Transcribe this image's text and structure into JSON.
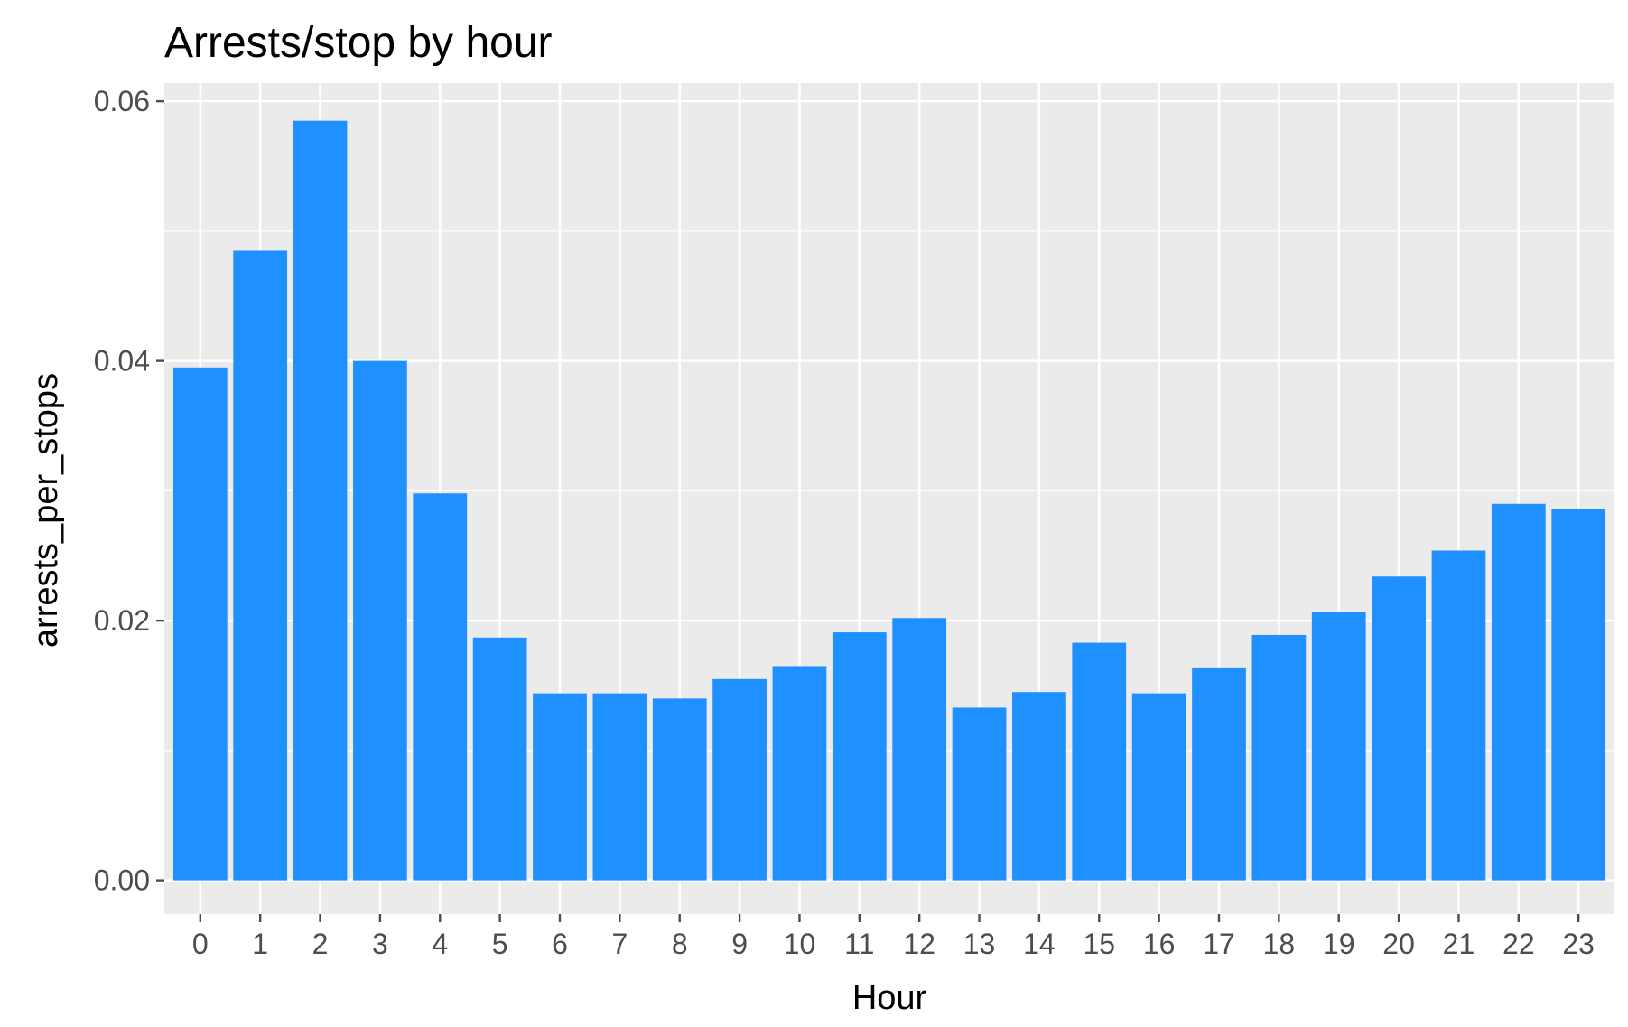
{
  "chart_data": {
    "type": "bar",
    "title": "Arrests/stop by hour",
    "xlabel": "Hour",
    "ylabel": "arrests_per_stops",
    "categories": [
      "0",
      "1",
      "2",
      "3",
      "4",
      "5",
      "6",
      "7",
      "8",
      "9",
      "10",
      "11",
      "12",
      "13",
      "14",
      "15",
      "16",
      "17",
      "18",
      "19",
      "20",
      "21",
      "22",
      "23"
    ],
    "values": [
      0.0395,
      0.0485,
      0.0585,
      0.04,
      0.0298,
      0.0187,
      0.0144,
      0.0144,
      0.014,
      0.0155,
      0.0165,
      0.0191,
      0.0202,
      0.0133,
      0.0145,
      0.0183,
      0.0144,
      0.0164,
      0.0189,
      0.0207,
      0.0234,
      0.0254,
      0.029,
      0.0286
    ],
    "yticks": [
      0.0,
      0.02,
      0.04,
      0.06
    ],
    "ytick_labels": [
      "0.00",
      "0.02",
      "0.04",
      "0.06"
    ],
    "ylim": [
      -0.0026,
      0.0614
    ],
    "grid": true,
    "legend": "none",
    "colors": {
      "bar": "#1E90FF",
      "panel_background": "#EBEBEB",
      "grid": "#FFFFFF",
      "tick": "#4D4D4D",
      "text": "#000000"
    }
  }
}
